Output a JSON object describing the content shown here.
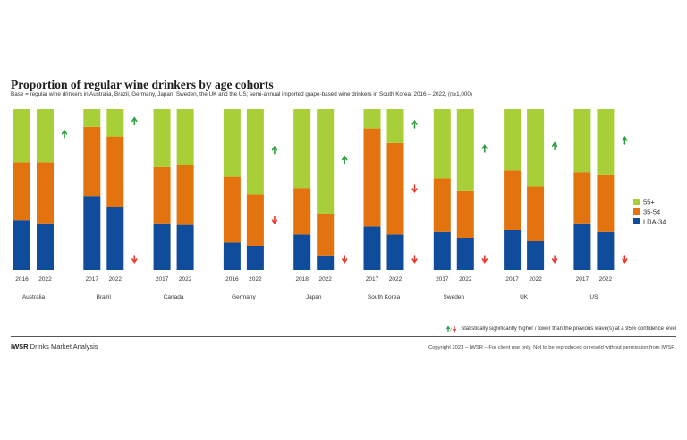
{
  "header": {
    "title": "Proportion of regular wine drinkers by age cohorts",
    "subtitle": "Base = regular wine drinkers in Australia, Brazil, Germany, Japan, Sweden, the UK and the US; semi-annual imported grape-based wine drinkers in South Korea; 2016 – 2022, (n≥1,000)"
  },
  "footer": {
    "legend_note": "Statistically significantly higher / lower than the previous wave(s) at a 95% confidence level",
    "brand_bold": "IWSR",
    "brand_rest": " Drinks Market Analysis",
    "copyright": "Copyright 2023 – IWSR – For client use only. Not to be reproduced or resold without permission from IWSR."
  },
  "colors": {
    "lda_34": "#0f4c9c",
    "age_35_54": "#e3730e",
    "age_55_plus": "#a8cf38",
    "up_arrow": "#2e9e3e",
    "down_arrow": "#e8392e"
  },
  "chart_data": {
    "type": "bar",
    "stacked": true,
    "unit": "percent",
    "ylim": [
      0,
      100
    ],
    "legend_position": "right",
    "series": [
      {
        "name": "LDA-34",
        "color": "#0f4c9c"
      },
      {
        "name": "35-54",
        "color": "#e3730e"
      },
      {
        "name": "55+",
        "color": "#a8cf38"
      }
    ],
    "groups": [
      {
        "country": "Australia",
        "years": [
          "2016",
          "2022"
        ],
        "lda_34": [
          31,
          29
        ],
        "age_35_54": [
          36,
          38
        ],
        "age_55_plus": [
          33,
          33
        ],
        "significance": {
          "55+": "up"
        }
      },
      {
        "country": "Brazil",
        "years": [
          "2017",
          "2022"
        ],
        "lda_34": [
          46,
          39
        ],
        "age_35_54": [
          43,
          44
        ],
        "age_55_plus": [
          11,
          17
        ],
        "significance": {
          "55+": "up",
          "LDA-34": "down"
        }
      },
      {
        "country": "Canada",
        "years": [
          "2017",
          "2022"
        ],
        "lda_34": [
          29,
          28
        ],
        "age_35_54": [
          35,
          37
        ],
        "age_55_plus": [
          36,
          35
        ],
        "significance": {}
      },
      {
        "country": "Germany",
        "years": [
          "2016",
          "2022"
        ],
        "lda_34": [
          17,
          15
        ],
        "age_35_54": [
          41,
          32
        ],
        "age_55_plus": [
          42,
          53
        ],
        "significance": {
          "55+": "up",
          "35-54": "down"
        }
      },
      {
        "country": "Japan",
        "years": [
          "2018",
          "2022"
        ],
        "lda_34": [
          22,
          9
        ],
        "age_35_54": [
          29,
          26
        ],
        "age_55_plus": [
          49,
          65
        ],
        "significance": {
          "55+": "up",
          "LDA-34": "down"
        }
      },
      {
        "country": "South Korea",
        "years": [
          "2017",
          "2022"
        ],
        "lda_34": [
          27,
          22
        ],
        "age_35_54": [
          61,
          57
        ],
        "age_55_plus": [
          12,
          21
        ],
        "significance": {
          "55+": "up",
          "35-54": "down",
          "LDA-34": "down"
        }
      },
      {
        "country": "Sweden",
        "years": [
          "2017",
          "2022"
        ],
        "lda_34": [
          24,
          20
        ],
        "age_35_54": [
          33,
          29
        ],
        "age_55_plus": [
          43,
          51
        ],
        "significance": {
          "55+": "up",
          "LDA-34": "down"
        }
      },
      {
        "country": "UK",
        "years": [
          "2017",
          "2022"
        ],
        "lda_34": [
          25,
          18
        ],
        "age_35_54": [
          37,
          34
        ],
        "age_55_plus": [
          38,
          48
        ],
        "significance": {
          "55+": "up",
          "LDA-34": "down"
        }
      },
      {
        "country": "US",
        "years": [
          "2017",
          "2022"
        ],
        "lda_34": [
          29,
          24
        ],
        "age_35_54": [
          32,
          35
        ],
        "age_55_plus": [
          39,
          41
        ],
        "significance": {
          "55+": "up",
          "LDA-34": "down"
        }
      }
    ]
  }
}
